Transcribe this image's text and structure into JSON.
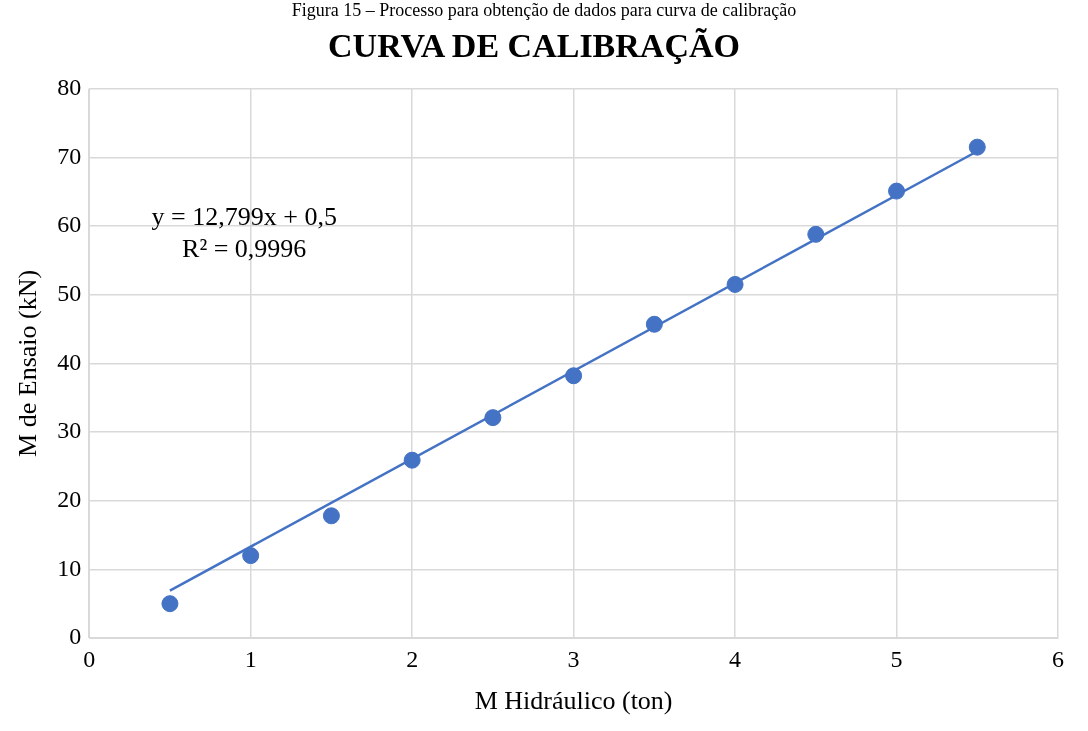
{
  "chart_data": {
    "type": "scatter",
    "title": "CURVA DE CALIBRAÇÃO",
    "subtitle": "Figura 15 – Processo para obtenção de dados para curva de calibração",
    "xlabel": "M Hidráulico (ton)",
    "ylabel": "M de Ensaio (kN)",
    "x": [
      0.5,
      1,
      1.5,
      2,
      2.5,
      3,
      3.5,
      4,
      4.5,
      5,
      5.5
    ],
    "series": [
      {
        "type": "scatter",
        "color": "#4472c4",
        "values": [
          5.0,
          12.0,
          17.8,
          25.9,
          32.1,
          38.2,
          45.7,
          51.5,
          58.8,
          65.1,
          71.5
        ]
      },
      {
        "type": "line",
        "color": "#4472c4",
        "x": [
          0.5,
          5.5
        ],
        "values": [
          6.9,
          70.9
        ],
        "marker": "none"
      }
    ],
    "annotations": [
      "y = 12,799x + 0,5",
      "R² = 0,9996"
    ],
    "xlim": [
      0,
      6
    ],
    "xticks": [
      0,
      1,
      2,
      3,
      4,
      5,
      6
    ],
    "ylim": [
      0,
      80
    ],
    "yticks": [
      0,
      10,
      20,
      30,
      40,
      50,
      60,
      70,
      80
    ],
    "grid": true,
    "legend": false,
    "marker": "circle"
  }
}
